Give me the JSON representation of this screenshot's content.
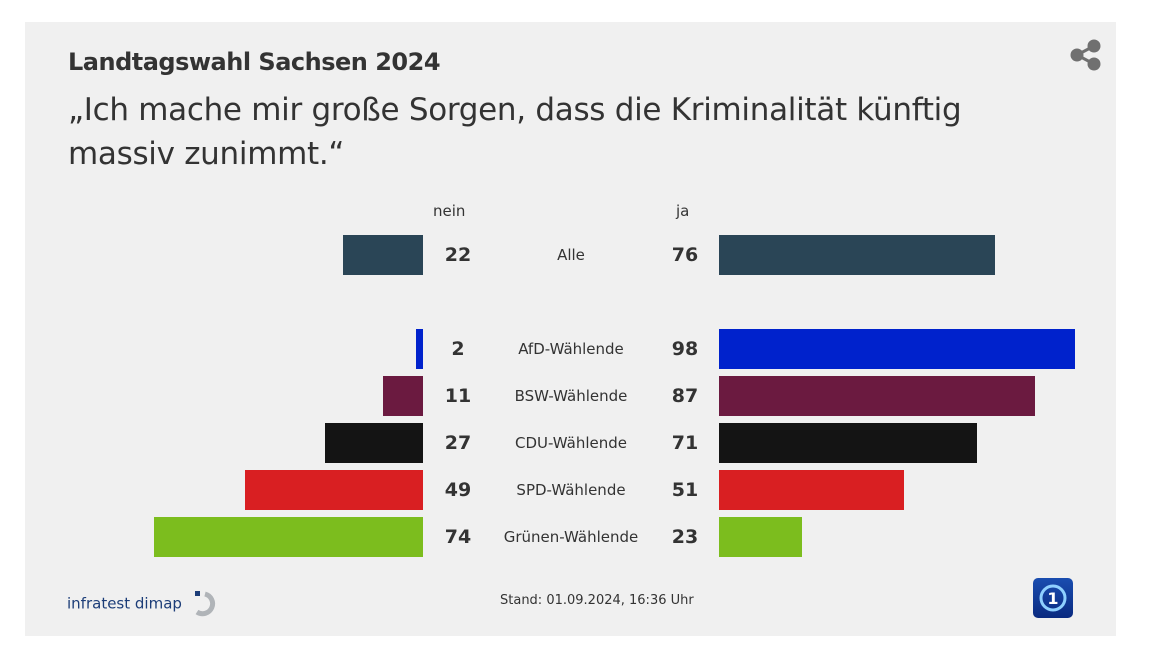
{
  "header": {
    "kicker": "Landtagswahl Sachsen 2024",
    "title": "„Ich mache mir große Sorgen, dass die Kriminalität künftig massiv zunimmt.“"
  },
  "footer": {
    "source": "infratest dimap",
    "stand": "Stand:  01.09.2024, 16:36 Uhr"
  },
  "chart_data": {
    "type": "bar",
    "left_header": "nein",
    "right_header": "ja",
    "categories": [
      "Alle",
      "AfD-Wählende",
      "BSW-Wählende",
      "CDU-Wählende",
      "SPD-Wählende",
      "Grünen-Wählende"
    ],
    "series": [
      {
        "name": "nein",
        "values": [
          22,
          2,
          11,
          27,
          49,
          74
        ]
      },
      {
        "name": "ja",
        "values": [
          76,
          98,
          87,
          71,
          51,
          23
        ]
      }
    ],
    "colors": [
      "#2a4556",
      "#0022cc",
      "#6b1a40",
      "#141414",
      "#d91f22",
      "#7cbd1e"
    ]
  }
}
